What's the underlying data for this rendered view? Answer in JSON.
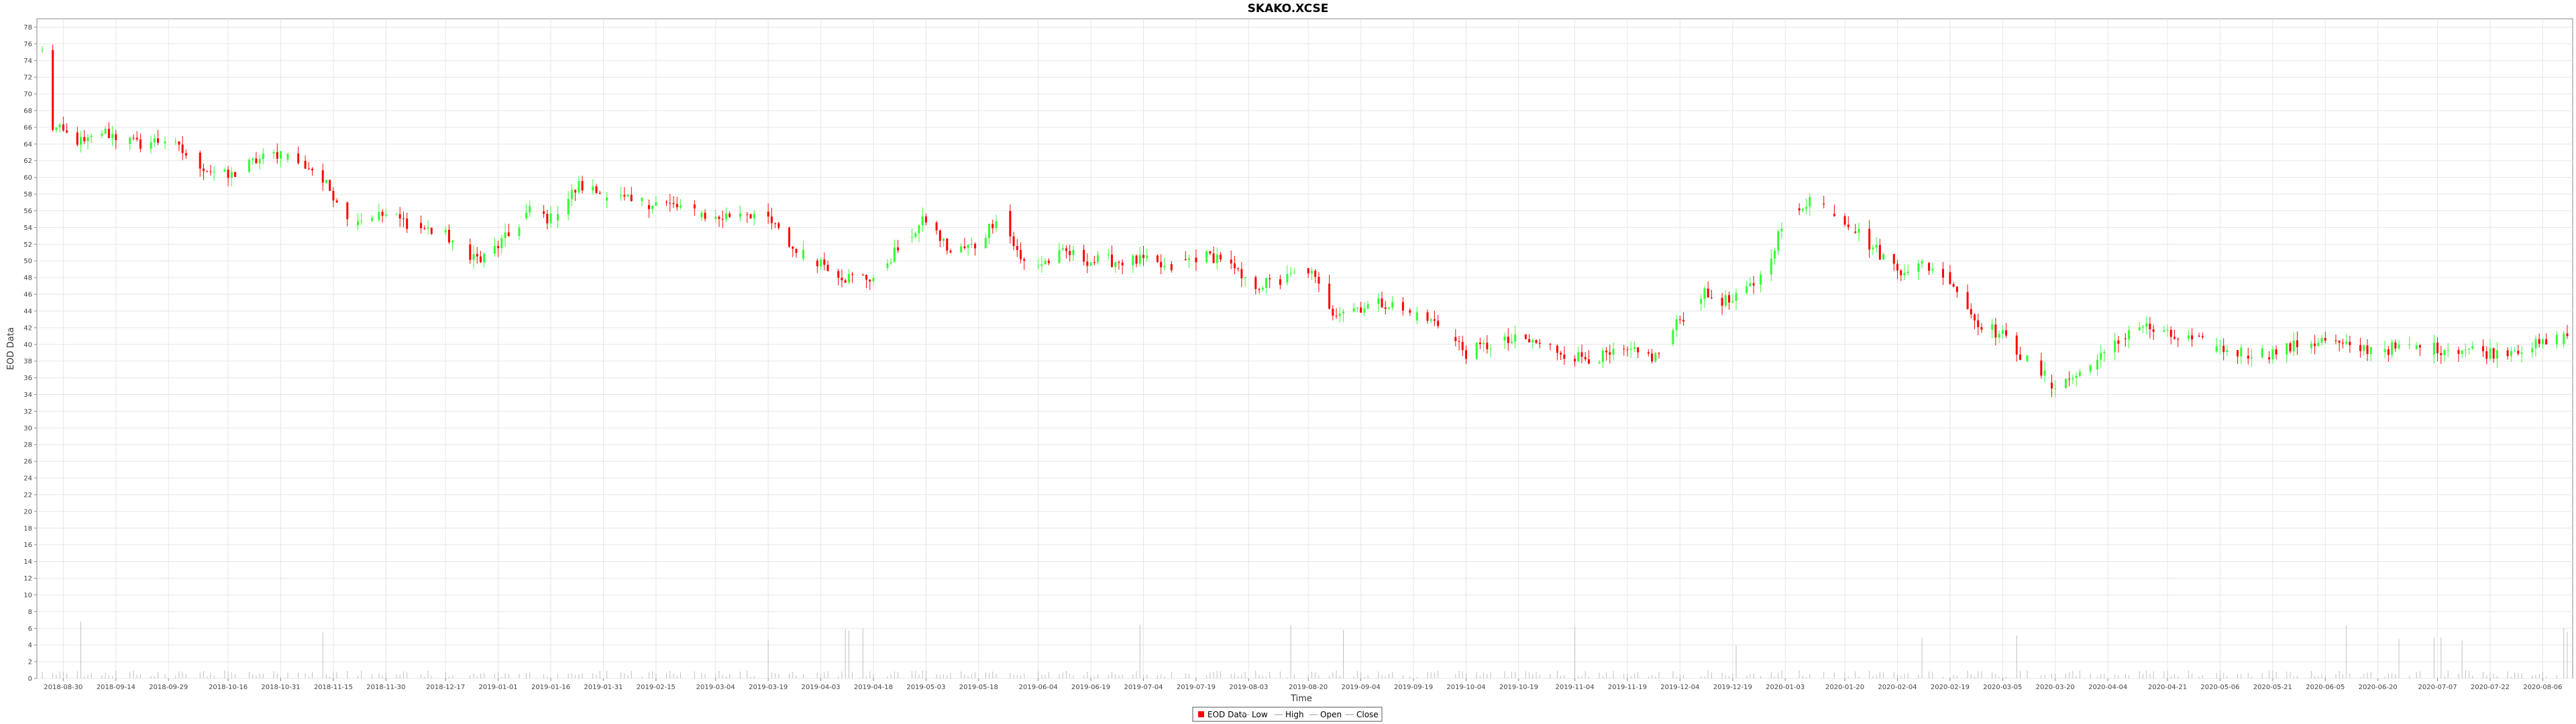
{
  "chart_data": {
    "type": "candlestick",
    "title": "SKAKO.XCSE",
    "xlabel": "Time",
    "ylabel": "EOD Data",
    "ylim": [
      0,
      79
    ],
    "y_ticks": [
      0,
      2,
      4,
      6,
      8,
      10,
      12,
      14,
      16,
      18,
      20,
      22,
      24,
      26,
      28,
      30,
      32,
      34,
      36,
      38,
      40,
      42,
      44,
      46,
      48,
      50,
      52,
      54,
      56,
      58,
      60,
      62,
      64,
      66,
      68,
      70,
      72,
      74,
      76,
      78
    ],
    "x_range": [
      "2018-08-24",
      "2020-08-13"
    ],
    "x_ticks": [
      "2018-08-30",
      "2018-09-14",
      "2018-09-29",
      "2018-10-16",
      "2018-10-31",
      "2018-11-15",
      "2018-11-30",
      "2018-12-17",
      "2019-01-01",
      "2019-01-16",
      "2019-01-31",
      "2019-02-15",
      "2019-03-04",
      "2019-03-19",
      "2019-04-03",
      "2019-04-18",
      "2019-05-03",
      "2019-05-18",
      "2019-06-04",
      "2019-06-19",
      "2019-07-04",
      "2019-07-19",
      "2019-08-03",
      "2019-08-20",
      "2019-09-04",
      "2019-09-19",
      "2019-10-04",
      "2019-10-19",
      "2019-11-04",
      "2019-11-19",
      "2019-12-04",
      "2019-12-19",
      "2020-01-03",
      "2020-01-20",
      "2020-02-04",
      "2020-02-19",
      "2020-03-05",
      "2020-03-20",
      "2020-04-04",
      "2020-04-21",
      "2020-05-06",
      "2020-05-21",
      "2020-06-05",
      "2020-06-20",
      "2020-07-07",
      "2020-07-22",
      "2020-08-06"
    ],
    "grid": true,
    "legend_position": "bottom-center",
    "legend": [
      "EOD Data",
      "Low",
      "High",
      "Open",
      "Close"
    ],
    "up_color": "#33ff33",
    "down_color": "#ff0000",
    "volume_color": "#c0c0c0",
    "series": [
      {
        "date": "2018-08-24",
        "close": 75.0
      },
      {
        "date": "2018-08-27",
        "close": 66.0
      },
      {
        "date": "2018-09-05",
        "close": 64.0
      },
      {
        "date": "2018-09-10",
        "close": 65.5
      },
      {
        "date": "2018-09-20",
        "close": 64.0
      },
      {
        "date": "2018-09-28",
        "close": 64.5
      },
      {
        "date": "2018-10-10",
        "close": 61.0
      },
      {
        "date": "2018-10-16",
        "close": 60.0
      },
      {
        "date": "2018-10-24",
        "close": 62.0
      },
      {
        "date": "2018-10-31",
        "close": 63.0
      },
      {
        "date": "2018-11-09",
        "close": 61.0
      },
      {
        "date": "2018-11-15",
        "close": 58.0
      },
      {
        "date": "2018-11-20",
        "close": 55.0
      },
      {
        "date": "2018-11-30",
        "close": 55.5
      },
      {
        "date": "2018-12-10",
        "close": 54.0
      },
      {
        "date": "2018-12-17",
        "close": 53.0
      },
      {
        "date": "2018-12-27",
        "close": 50.0
      },
      {
        "date": "2019-01-04",
        "close": 53.0
      },
      {
        "date": "2019-01-10",
        "close": 56.0
      },
      {
        "date": "2019-01-16",
        "close": 55.0
      },
      {
        "date": "2019-01-24",
        "close": 59.0
      },
      {
        "date": "2019-01-31",
        "close": 58.0
      },
      {
        "date": "2019-02-08",
        "close": 57.0
      },
      {
        "date": "2019-02-15",
        "close": 57.0
      },
      {
        "date": "2019-02-26",
        "close": 56.0
      },
      {
        "date": "2019-03-04",
        "close": 55.0
      },
      {
        "date": "2019-03-12",
        "close": 56.0
      },
      {
        "date": "2019-03-19",
        "close": 55.0
      },
      {
        "date": "2019-03-27",
        "close": 51.0
      },
      {
        "date": "2019-04-03",
        "close": 50.0
      },
      {
        "date": "2019-04-10",
        "close": 48.0
      },
      {
        "date": "2019-04-18",
        "close": 48.0
      },
      {
        "date": "2019-04-26",
        "close": 52.0
      },
      {
        "date": "2019-05-03",
        "close": 55.0
      },
      {
        "date": "2019-05-10",
        "close": 51.0
      },
      {
        "date": "2019-05-18",
        "close": 52.0
      },
      {
        "date": "2019-05-24",
        "close": 56.0
      },
      {
        "date": "2019-05-30",
        "close": 50.0
      },
      {
        "date": "2019-06-04",
        "close": 49.5
      },
      {
        "date": "2019-06-12",
        "close": 51.0
      },
      {
        "date": "2019-06-19",
        "close": 50.0
      },
      {
        "date": "2019-06-27",
        "close": 50.0
      },
      {
        "date": "2019-07-04",
        "close": 50.0
      },
      {
        "date": "2019-07-11",
        "close": 49.0
      },
      {
        "date": "2019-07-19",
        "close": 50.5
      },
      {
        "date": "2019-07-26",
        "close": 50.5
      },
      {
        "date": "2019-08-03",
        "close": 47.0
      },
      {
        "date": "2019-08-12",
        "close": 47.5
      },
      {
        "date": "2019-08-20",
        "close": 49.0
      },
      {
        "date": "2019-08-27",
        "close": 44.0
      },
      {
        "date": "2019-09-04",
        "close": 44.5
      },
      {
        "date": "2019-09-11",
        "close": 45.0
      },
      {
        "date": "2019-09-19",
        "close": 43.5
      },
      {
        "date": "2019-09-26",
        "close": 42.5
      },
      {
        "date": "2019-10-04",
        "close": 39.0
      },
      {
        "date": "2019-10-11",
        "close": 40.0
      },
      {
        "date": "2019-10-19",
        "close": 40.5
      },
      {
        "date": "2019-10-26",
        "close": 40.0
      },
      {
        "date": "2019-11-04",
        "close": 38.5
      },
      {
        "date": "2019-11-12",
        "close": 38.5
      },
      {
        "date": "2019-11-19",
        "close": 39.0
      },
      {
        "date": "2019-11-27",
        "close": 38.5
      },
      {
        "date": "2019-12-04",
        "close": 43.0
      },
      {
        "date": "2019-12-10",
        "close": 46.0
      },
      {
        "date": "2019-12-19",
        "close": 45.0
      },
      {
        "date": "2019-12-27",
        "close": 48.0
      },
      {
        "date": "2020-01-03",
        "close": 55.0
      },
      {
        "date": "2020-01-10",
        "close": 57.5
      },
      {
        "date": "2020-01-20",
        "close": 55.0
      },
      {
        "date": "2020-01-27",
        "close": 52.0
      },
      {
        "date": "2020-02-04",
        "close": 49.0
      },
      {
        "date": "2020-02-12",
        "close": 49.5
      },
      {
        "date": "2020-02-19",
        "close": 48.0
      },
      {
        "date": "2020-02-26",
        "close": 43.0
      },
      {
        "date": "2020-03-05",
        "close": 41.0
      },
      {
        "date": "2020-03-12",
        "close": 38.0
      },
      {
        "date": "2020-03-20",
        "close": 35.0
      },
      {
        "date": "2020-03-27",
        "close": 36.5
      },
      {
        "date": "2020-04-04",
        "close": 39.0
      },
      {
        "date": "2020-04-12",
        "close": 42.5
      },
      {
        "date": "2020-04-21",
        "close": 41.0
      },
      {
        "date": "2020-04-28",
        "close": 40.5
      },
      {
        "date": "2020-05-06",
        "close": 39.5
      },
      {
        "date": "2020-05-13",
        "close": 39.0
      },
      {
        "date": "2020-05-21",
        "close": 39.0
      },
      {
        "date": "2020-05-29",
        "close": 40.0
      },
      {
        "date": "2020-06-05",
        "close": 40.5
      },
      {
        "date": "2020-06-12",
        "close": 39.5
      },
      {
        "date": "2020-06-20",
        "close": 39.5
      },
      {
        "date": "2020-06-29",
        "close": 39.5
      },
      {
        "date": "2020-07-07",
        "close": 39.5
      },
      {
        "date": "2020-07-14",
        "close": 39.5
      },
      {
        "date": "2020-07-22",
        "close": 39.0
      },
      {
        "date": "2020-07-29",
        "close": 39.5
      },
      {
        "date": "2020-08-06",
        "close": 40.0
      },
      {
        "date": "2020-08-13",
        "close": 41.0
      }
    ]
  }
}
